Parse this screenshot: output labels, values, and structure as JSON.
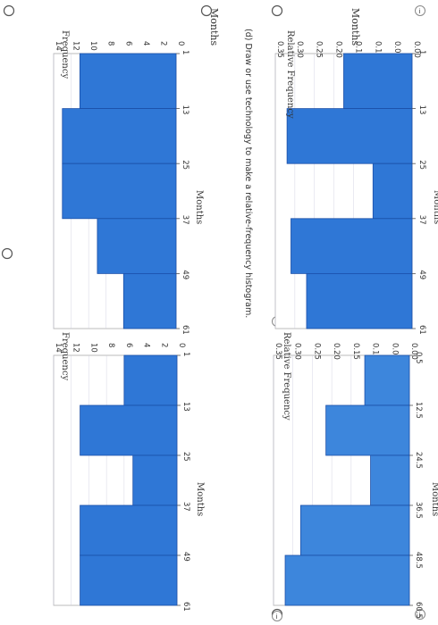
{
  "page": {
    "top_label_left": "Months",
    "top_label_right": "Months"
  },
  "options": [
    {
      "id": "histogram-frequency-a",
      "chart_data": {
        "type": "bar",
        "title": "",
        "xlabel": "Months",
        "ylabel": "Frequency",
        "x_ticks": [
          "1",
          "13",
          "25",
          "37",
          "49",
          "61"
        ],
        "y_ticks": [
          "0",
          "2",
          "4",
          "6",
          "8",
          "10",
          "12",
          "14"
        ],
        "ylim": [
          0,
          14
        ],
        "bins": [
          [
            1,
            13
          ],
          [
            13,
            25
          ],
          [
            25,
            37
          ],
          [
            37,
            49
          ],
          [
            49,
            61
          ]
        ],
        "values": [
          11,
          13,
          13,
          9,
          6
        ]
      }
    },
    {
      "id": "histogram-frequency-b",
      "chart_data": {
        "type": "bar",
        "title": "",
        "xlabel": "Months",
        "ylabel": "Frequency",
        "x_ticks": [
          "1",
          "13",
          "25",
          "37",
          "49",
          "61"
        ],
        "y_ticks": [
          "0",
          "2",
          "4",
          "6",
          "8",
          "10",
          "12",
          "14"
        ],
        "ylim": [
          0,
          14
        ],
        "bins": [
          [
            1,
            13
          ],
          [
            13,
            25
          ],
          [
            25,
            37
          ],
          [
            37,
            49
          ],
          [
            49,
            61
          ]
        ],
        "values": [
          6,
          11,
          5,
          11,
          11
        ]
      }
    },
    {
      "id": "histogram-relative-c",
      "chart_data": {
        "type": "bar",
        "title": "",
        "xlabel": "Months",
        "ylabel": "Relative Frequency",
        "x_ticks": [
          "1",
          "13",
          "25",
          "37",
          "49",
          "61"
        ],
        "y_ticks": [
          "0.00",
          "0.05",
          "0.10",
          "0.15",
          "0.20",
          "0.25",
          "0.30",
          "0.35"
        ],
        "ylim": [
          0,
          0.35
        ],
        "bins": [
          [
            1,
            13
          ],
          [
            13,
            25
          ],
          [
            25,
            37
          ],
          [
            37,
            49
          ],
          [
            49,
            61
          ]
        ],
        "values": [
          0.175,
          0.32,
          0.1,
          0.31,
          0.27
        ]
      }
    },
    {
      "id": "histogram-relative-d",
      "chart_data": {
        "type": "bar",
        "title": "",
        "xlabel": "Months",
        "ylabel": "Relative Frequency",
        "x_ticks": [
          "0.5",
          "12.5",
          "24.5",
          "36.5",
          "48.5",
          "60.5"
        ],
        "y_ticks": [
          "0.00",
          "0.05",
          "0.10",
          "0.15",
          "0.20",
          "0.25",
          "0.30",
          "0.35"
        ],
        "ylim": [
          0,
          0.35
        ],
        "bins": [
          [
            0.5,
            12.5
          ],
          [
            12.5,
            24.5
          ],
          [
            24.5,
            36.5
          ],
          [
            36.5,
            48.5
          ],
          [
            48.5,
            60.5
          ]
        ],
        "values": [
          0.115,
          0.215,
          0.1,
          0.28,
          0.32
        ]
      }
    }
  ],
  "question": {
    "text": "(d)  Draw or use technology to make a relative-frequency histogram."
  },
  "colors": {
    "bar_fill": "#2f77d6",
    "bar_stroke": "#1b4fa8",
    "bar_fill_light": "#3d86dc"
  },
  "icons": {
    "radio": "radio-button-icon",
    "info": "info-icon"
  }
}
